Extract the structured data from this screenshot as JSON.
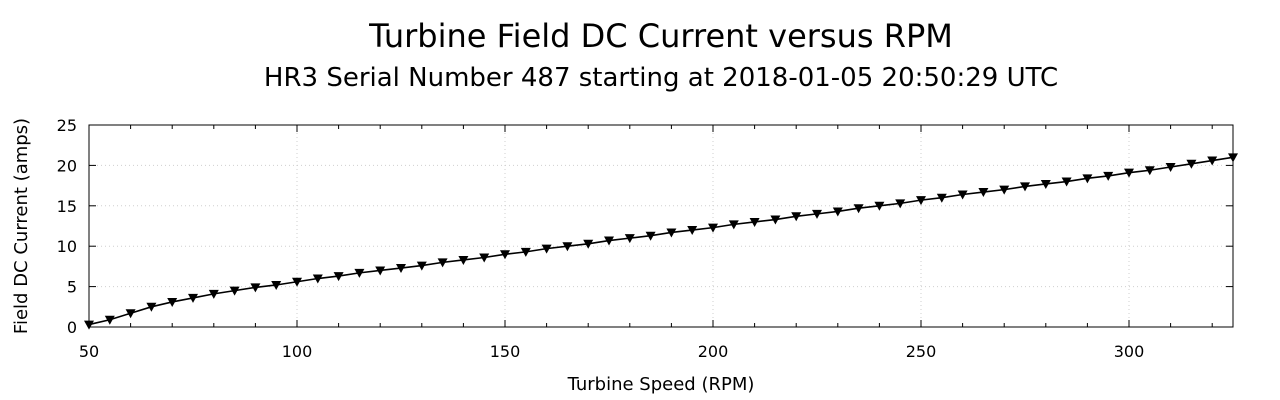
{
  "chart_data": {
    "type": "line",
    "title": "Turbine Field DC Current versus RPM",
    "subtitle": "HR3 Serial Number 487 starting at 2018-01-05 20:50:29 UTC",
    "xlabel": "Turbine Speed (RPM)",
    "ylabel": "Field DC Current (amps)",
    "xlim": [
      50,
      325
    ],
    "ylim": [
      0,
      25
    ],
    "xticks": [
      50,
      100,
      150,
      200,
      250,
      300
    ],
    "yticks": [
      0,
      5,
      10,
      15,
      20,
      25
    ],
    "grid": true,
    "marker": "down-triangle",
    "line_color": "#000000",
    "series": [
      {
        "x": [
          50,
          55,
          60,
          65,
          70,
          75,
          80,
          85,
          90,
          95,
          100,
          105,
          110,
          115,
          120,
          125,
          130,
          135,
          140,
          145,
          150,
          155,
          160,
          165,
          170,
          175,
          180,
          185,
          190,
          195,
          200,
          205,
          210,
          215,
          220,
          225,
          230,
          235,
          240,
          245,
          250,
          255,
          260,
          265,
          270,
          275,
          280,
          285,
          290,
          295,
          300,
          305,
          310,
          315,
          320,
          325
        ],
        "y": [
          0.3,
          0.9,
          1.7,
          2.5,
          3.1,
          3.6,
          4.1,
          4.5,
          4.9,
          5.2,
          5.6,
          6.0,
          6.3,
          6.7,
          7.0,
          7.3,
          7.6,
          8.0,
          8.3,
          8.6,
          9.0,
          9.3,
          9.7,
          10.0,
          10.3,
          10.7,
          11.0,
          11.3,
          11.7,
          12.0,
          12.3,
          12.7,
          13.0,
          13.3,
          13.7,
          14.0,
          14.3,
          14.7,
          15.0,
          15.3,
          15.7,
          16.0,
          16.4,
          16.7,
          17.0,
          17.4,
          17.7,
          18.0,
          18.4,
          18.7,
          19.1,
          19.4,
          19.8,
          20.2,
          20.6,
          21.0
        ]
      }
    ]
  }
}
